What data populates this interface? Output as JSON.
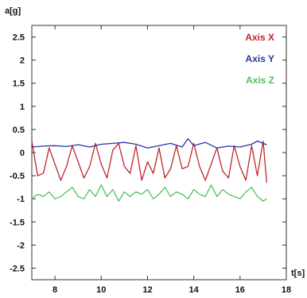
{
  "chart_data": {
    "type": "line",
    "title": "",
    "xlabel": "t[s]",
    "ylabel": "a[g]",
    "xlim": [
      7,
      18
    ],
    "ylim": [
      -2.75,
      2.75
    ],
    "x_ticks": [
      8,
      10,
      12,
      14,
      16,
      18
    ],
    "y_ticks": [
      -2.5,
      -2,
      -1.5,
      -1,
      -0.5,
      0,
      0.5,
      1,
      1.5,
      2,
      2.5
    ],
    "x_tick_labels": [
      "8",
      "10",
      "12",
      "14",
      "16",
      "18"
    ],
    "y_tick_labels": [
      "-2.5",
      "-2",
      "-1.5",
      "-1",
      "-0.5",
      "0",
      "0.5",
      "1",
      "1.5",
      "2",
      "2.5"
    ],
    "grid": false,
    "legend_position": "top-right",
    "series": [
      {
        "name": "Axis X",
        "color": "#c0262c",
        "x": [
          7.0,
          7.25,
          7.5,
          7.75,
          8.0,
          8.25,
          8.5,
          8.75,
          9.0,
          9.25,
          9.5,
          9.75,
          10.0,
          10.25,
          10.5,
          10.75,
          11.0,
          11.25,
          11.5,
          11.75,
          12.0,
          12.25,
          12.5,
          12.75,
          13.0,
          13.25,
          13.5,
          13.75,
          14.0,
          14.25,
          14.5,
          14.75,
          15.0,
          15.25,
          15.5,
          15.75,
          16.0,
          16.25,
          16.5,
          16.75,
          17.0,
          17.15
        ],
        "values": [
          0.25,
          -0.5,
          -0.45,
          0.1,
          -0.25,
          -0.6,
          -0.3,
          0.15,
          -0.2,
          -0.55,
          -0.3,
          0.2,
          -0.25,
          -0.55,
          0.05,
          0.2,
          -0.3,
          -0.45,
          0.15,
          -0.6,
          -0.2,
          -0.45,
          0.1,
          -0.55,
          -0.35,
          0.15,
          -0.35,
          -0.3,
          0.2,
          -0.3,
          -0.6,
          -0.25,
          0.1,
          -0.4,
          -0.55,
          0.15,
          -0.3,
          -0.6,
          0.15,
          -0.5,
          0.25,
          -0.65
        ]
      },
      {
        "name": "Axis Y",
        "color": "#2a34a8",
        "x": [
          7.0,
          7.5,
          8.0,
          8.5,
          9.0,
          9.5,
          10.0,
          10.5,
          11.0,
          11.5,
          12.0,
          12.5,
          13.0,
          13.5,
          13.75,
          14.0,
          14.5,
          15.0,
          15.5,
          16.0,
          16.5,
          16.75,
          17.0,
          17.15
        ],
        "values": [
          0.12,
          0.14,
          0.15,
          0.13,
          0.17,
          0.12,
          0.18,
          0.2,
          0.22,
          0.18,
          0.1,
          0.15,
          0.2,
          0.12,
          0.3,
          0.15,
          0.22,
          0.1,
          0.14,
          0.12,
          0.18,
          0.25,
          0.2,
          0.17
        ]
      },
      {
        "name": "Axis Z",
        "color": "#4fc25a",
        "x": [
          7.0,
          7.25,
          7.5,
          7.75,
          8.0,
          8.25,
          8.5,
          8.75,
          9.0,
          9.25,
          9.5,
          9.75,
          10.0,
          10.25,
          10.5,
          10.75,
          11.0,
          11.25,
          11.5,
          11.75,
          12.0,
          12.25,
          12.5,
          12.75,
          13.0,
          13.25,
          13.5,
          13.75,
          14.0,
          14.25,
          14.5,
          14.75,
          15.0,
          15.25,
          15.5,
          15.75,
          16.0,
          16.25,
          16.5,
          16.75,
          17.0,
          17.15
        ],
        "values": [
          -1.0,
          -0.9,
          -0.95,
          -0.85,
          -1.0,
          -0.95,
          -0.85,
          -0.75,
          -0.95,
          -1.0,
          -0.8,
          -0.95,
          -0.7,
          -0.95,
          -0.8,
          -1.05,
          -0.85,
          -0.95,
          -0.85,
          -0.9,
          -0.8,
          -1.0,
          -0.9,
          -0.75,
          -0.95,
          -0.85,
          -0.9,
          -1.0,
          -0.8,
          -0.9,
          -0.95,
          -0.7,
          -0.95,
          -0.8,
          -0.9,
          -0.95,
          -1.0,
          -0.85,
          -0.75,
          -0.95,
          -1.05,
          -1.0
        ]
      }
    ]
  }
}
